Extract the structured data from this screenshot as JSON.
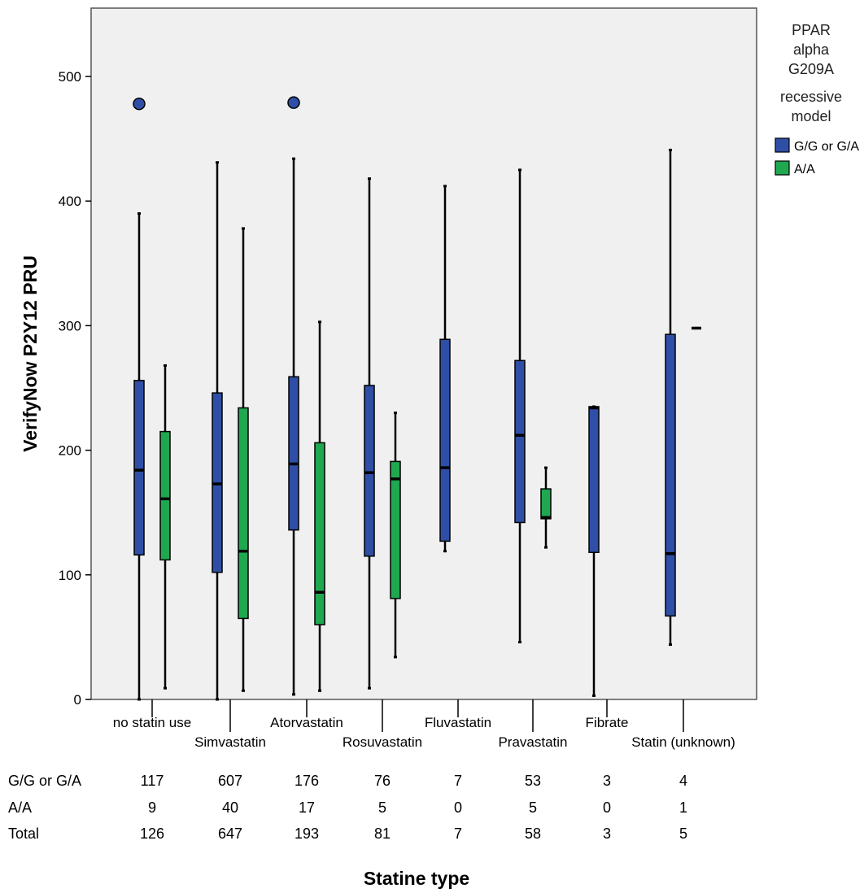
{
  "chart_data": {
    "type": "box",
    "ylabel": "VerifyNow P2Y12 PRU",
    "xlabel": "Statine type",
    "ylim": [
      0,
      550
    ],
    "yticks": [
      0,
      100,
      200,
      300,
      400,
      500
    ],
    "legend": {
      "title_lines": [
        "PPAR",
        "alpha",
        "G209A",
        "recessive",
        "model"
      ],
      "position": "right",
      "entries": [
        {
          "name": "G/G or G/A",
          "color": "#2f4fa6"
        },
        {
          "name": "A/A",
          "color": "#1fa84f"
        }
      ]
    },
    "categories": [
      "no statin use",
      "Simvastatin",
      "Atorvastatin",
      "Rosuvastatin",
      "Fluvastatin",
      "Pravastatin",
      "Fibrate",
      "Statin (unknown)"
    ],
    "series": [
      {
        "name": "G/G or G/A",
        "color": "#2f4fa6",
        "boxes": [
          {
            "min": 0,
            "q1": 116,
            "median": 184,
            "q3": 256,
            "max": 390,
            "outliers": [
              478
            ]
          },
          {
            "min": 0,
            "q1": 102,
            "median": 173,
            "q3": 246,
            "max": 431,
            "outliers": []
          },
          {
            "min": 4,
            "q1": 136,
            "median": 189,
            "q3": 259,
            "max": 434,
            "outliers": [
              479
            ]
          },
          {
            "min": 9,
            "q1": 115,
            "median": 182,
            "q3": 252,
            "max": 418,
            "outliers": []
          },
          {
            "min": 119,
            "q1": 127,
            "median": 186,
            "q3": 289,
            "max": 412,
            "outliers": []
          },
          {
            "min": 46,
            "q1": 142,
            "median": 212,
            "q3": 272,
            "max": 425,
            "outliers": []
          },
          {
            "min": 3,
            "q1": 118,
            "median": 234,
            "q3": 235,
            "max": 235,
            "outliers": []
          },
          {
            "min": 44,
            "q1": 67,
            "median": 117,
            "q3": 293,
            "max": 441,
            "outliers": []
          }
        ]
      },
      {
        "name": "A/A",
        "color": "#1fa84f",
        "boxes": [
          {
            "min": 9,
            "q1": 112,
            "median": 161,
            "q3": 215,
            "max": 268,
            "outliers": []
          },
          {
            "min": 7,
            "q1": 65,
            "median": 119,
            "q3": 234,
            "max": 378,
            "outliers": []
          },
          {
            "min": 7,
            "q1": 60,
            "median": 86,
            "q3": 206,
            "max": 303,
            "outliers": []
          },
          {
            "min": 34,
            "q1": 81,
            "median": 177,
            "q3": 191,
            "max": 230,
            "outliers": []
          },
          null,
          {
            "min": 122,
            "q1": 145,
            "median": 146,
            "q3": 169,
            "max": 186,
            "outliers": []
          },
          null,
          {
            "min": 298,
            "q1": 298,
            "median": 298,
            "q3": 298,
            "max": 298,
            "outliers": []
          }
        ]
      }
    ]
  },
  "counts_table": {
    "rows": [
      {
        "label": "G/G or G/A",
        "values": [
          "117",
          "607",
          "176",
          "76",
          "7",
          "53",
          "3",
          "4"
        ]
      },
      {
        "label": "A/A",
        "values": [
          "9",
          "40",
          "17",
          "5",
          "0",
          "5",
          "0",
          "1"
        ]
      },
      {
        "label": "Total",
        "values": [
          "126",
          "647",
          "193",
          "81",
          "7",
          "58",
          "3",
          "5"
        ]
      }
    ]
  }
}
